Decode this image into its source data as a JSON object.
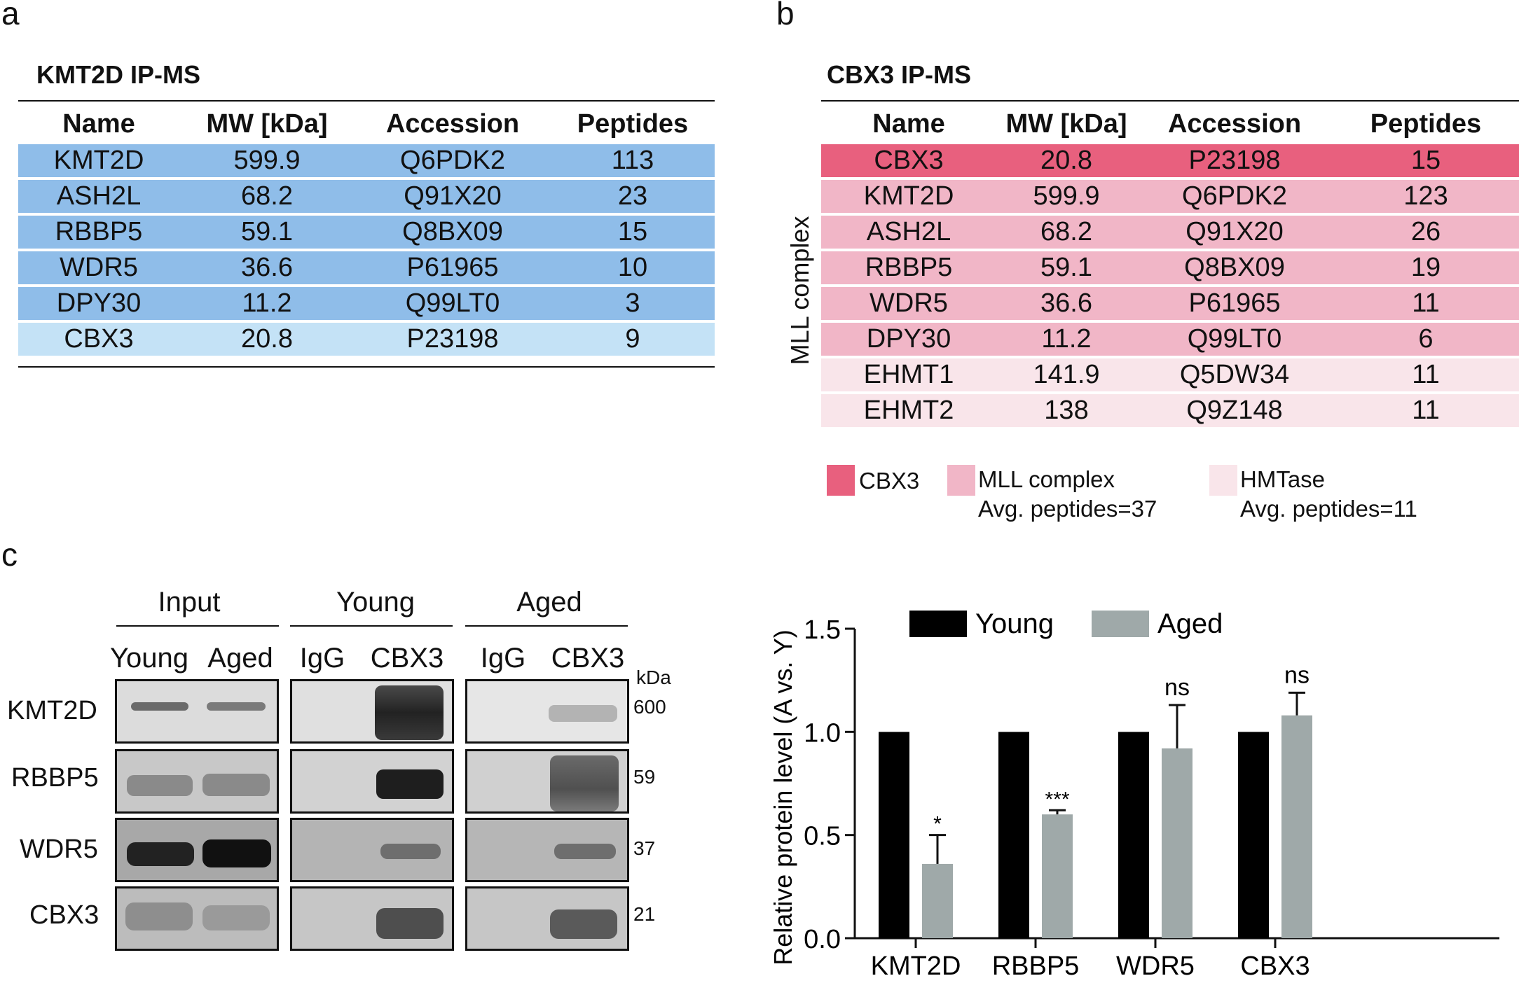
{
  "panels": {
    "a": "a",
    "b": "b",
    "c": "c"
  },
  "table_a": {
    "title": "KMT2D IP-MS",
    "headers": [
      "Name",
      "MW [kDa]",
      "Accession",
      "Peptides"
    ],
    "rows": [
      {
        "name": "KMT2D",
        "mw": "599.9",
        "acc": "Q6PDK2",
        "pep": "113",
        "group": "complex"
      },
      {
        "name": "ASH2L",
        "mw": "68.2",
        "acc": "Q91X20",
        "pep": "23",
        "group": "complex"
      },
      {
        "name": "RBBP5",
        "mw": "59.1",
        "acc": "Q8BX09",
        "pep": "15",
        "group": "complex"
      },
      {
        "name": "WDR5",
        "mw": "36.6",
        "acc": "P61965",
        "pep": "10",
        "group": "complex"
      },
      {
        "name": "DPY30",
        "mw": "11.2",
        "acc": "Q99LT0",
        "pep": "3",
        "group": "complex"
      },
      {
        "name": "CBX3",
        "mw": "20.8",
        "acc": "P23198",
        "pep": "9",
        "group": "cbx3"
      }
    ],
    "colors": {
      "complex": "#8fbde9",
      "cbx3": "#c4e2f6"
    }
  },
  "table_b": {
    "title": "CBX3 IP-MS",
    "side_label": "MLL complex",
    "headers": [
      "Name",
      "MW [kDa]",
      "Accession",
      "Peptides"
    ],
    "rows": [
      {
        "name": "CBX3",
        "mw": "20.8",
        "acc": "P23198",
        "pep": "15",
        "group": "cbx3"
      },
      {
        "name": "KMT2D",
        "mw": "599.9",
        "acc": "Q6PDK2",
        "pep": "123",
        "group": "mll"
      },
      {
        "name": "ASH2L",
        "mw": "68.2",
        "acc": "Q91X20",
        "pep": "26",
        "group": "mll"
      },
      {
        "name": "RBBP5",
        "mw": "59.1",
        "acc": "Q8BX09",
        "pep": "19",
        "group": "mll"
      },
      {
        "name": "WDR5",
        "mw": "36.6",
        "acc": "P61965",
        "pep": "11",
        "group": "mll"
      },
      {
        "name": "DPY30",
        "mw": "11.2",
        "acc": "Q99LT0",
        "pep": "6",
        "group": "mll"
      },
      {
        "name": "EHMT1",
        "mw": "141.9",
        "acc": "Q5DW34",
        "pep": "11",
        "group": "hmt"
      },
      {
        "name": "EHMT2",
        "mw": "138",
        "acc": "Q9Z148",
        "pep": "11",
        "group": "hmt"
      }
    ],
    "colors": {
      "cbx3": "#e8607e",
      "mll": "#f1b6c7",
      "hmt": "#f9e5ea"
    },
    "legend": {
      "cbx3": "CBX3",
      "mll": "MLL complex",
      "mll_avg": "Avg. peptides=37",
      "hmt": "HMTase",
      "hmt_avg": "Avg. peptides=11"
    }
  },
  "blot": {
    "groups": [
      "Input",
      "Young",
      "Aged"
    ],
    "lanes": [
      "Young",
      "Aged",
      "IgG",
      "CBX3",
      "IgG",
      "CBX3"
    ],
    "proteins": [
      "KMT2D",
      "RBBP5",
      "WDR5",
      "CBX3"
    ],
    "kda_unit": "kDa",
    "markers": [
      "600",
      "59",
      "37",
      "21"
    ]
  },
  "chart_data": {
    "type": "bar",
    "categories": [
      "KMT2D",
      "RBBP5",
      "WDR5",
      "CBX3"
    ],
    "series": [
      {
        "name": "Young",
        "values": [
          1.0,
          1.0,
          1.0,
          1.0
        ],
        "errors": [
          0,
          0,
          0,
          0
        ],
        "color": "#000000"
      },
      {
        "name": "Aged",
        "values": [
          0.36,
          0.6,
          0.92,
          1.08
        ],
        "errors": [
          0.14,
          0.02,
          0.21,
          0.11
        ],
        "color": "#9fa9a9"
      }
    ],
    "significance": [
      "*",
      "***",
      "ns",
      "ns"
    ],
    "ylabel": "Relative protein level (A vs. Y)",
    "ylim": [
      0.0,
      1.5
    ],
    "yticks": [
      "0.0",
      "0.5",
      "1.0",
      "1.5"
    ],
    "legend_position": "top"
  }
}
